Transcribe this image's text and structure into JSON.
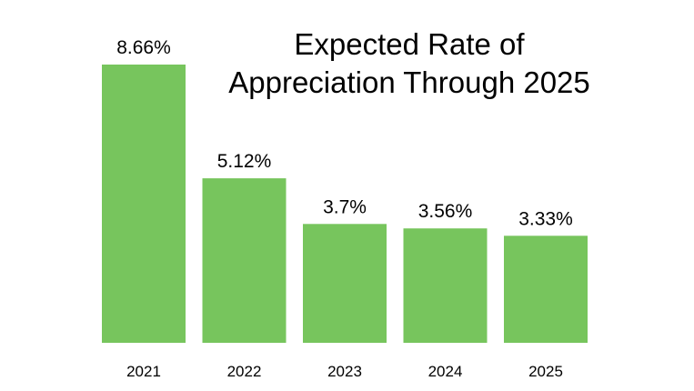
{
  "chart_data": {
    "type": "bar",
    "title_lines": [
      "Expected Rate of",
      "Appreciation Through 2025"
    ],
    "categories": [
      "2021",
      "2022",
      "2023",
      "2024",
      "2025"
    ],
    "values": [
      8.66,
      5.12,
      3.7,
      3.56,
      3.33
    ],
    "data_labels": [
      "8.66%",
      "5.12%",
      "3.7%",
      "3.56%",
      "3.33%"
    ],
    "xlabel": "",
    "ylabel": "",
    "ylim": [
      0,
      8.66
    ],
    "grid": false,
    "legend": "none",
    "bar_color": "#77C55D"
  }
}
